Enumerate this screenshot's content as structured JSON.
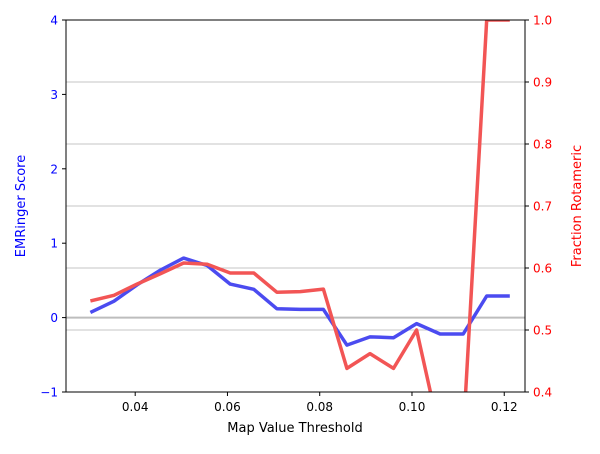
{
  "chart_data": {
    "type": "line",
    "xlabel": "Map Value Threshold",
    "ylabel_left": "EMRinger Score",
    "ylabel_right": "Fraction Rotameric",
    "xlim": [
      0.025,
      0.1245
    ],
    "ylim_left": [
      -1,
      4
    ],
    "ylim_right": [
      0.4,
      1.0
    ],
    "x_ticks": [
      0.04,
      0.06,
      0.08,
      0.1,
      0.12
    ],
    "x_tick_labels": [
      "0.04",
      "0.06",
      "0.08",
      "0.10",
      "0.12"
    ],
    "y_left_ticks": [
      -1,
      0,
      1,
      2,
      3,
      4
    ],
    "y_left_tick_labels": [
      "−1",
      "0",
      "1",
      "2",
      "3",
      "4"
    ],
    "y_right_ticks": [
      0.4,
      0.5,
      0.6,
      0.7,
      0.8,
      0.9,
      1.0
    ],
    "y_right_tick_labels": [
      "0.4",
      "0.5",
      "0.6",
      "0.7",
      "0.8",
      "0.9",
      "1.0"
    ],
    "grid": "right-axis horizontal gridlines",
    "zero_line": 0,
    "colors": {
      "left_axis": "#0000ff",
      "right_axis": "#ff0000",
      "emringer_line": "#4b4bf0",
      "rotameric_line": "#f25555",
      "grid": "#b0b0b0",
      "zero_line": "#bdbdbd"
    },
    "series": [
      {
        "axis": "left",
        "x": [
          0.0303,
          0.0354,
          0.0404,
          0.0455,
          0.0505,
          0.0556,
          0.0606,
          0.0657,
          0.0707,
          0.0758,
          0.0808,
          0.0859,
          0.0909,
          0.096,
          0.101,
          0.1061,
          0.1111,
          0.1162,
          0.1212
        ],
        "values": [
          0.07,
          0.22,
          0.44,
          0.64,
          0.8,
          0.7,
          0.45,
          0.38,
          0.12,
          0.11,
          0.11,
          -0.37,
          -0.26,
          -0.27,
          -0.08,
          -0.22,
          -0.22,
          0.29,
          0.29
        ]
      },
      {
        "axis": "right",
        "x": [
          0.0303,
          0.0354,
          0.0404,
          0.0455,
          0.0505,
          0.0556,
          0.0606,
          0.0657,
          0.0707,
          0.0758,
          0.0808,
          0.0859,
          0.0909,
          0.096,
          0.101,
          0.1061,
          0.1111,
          0.1162,
          0.1212
        ],
        "values": [
          0.547,
          0.556,
          0.574,
          0.591,
          0.608,
          0.606,
          0.592,
          0.592,
          0.561,
          0.562,
          0.566,
          0.438,
          0.462,
          0.438,
          0.5,
          0.33,
          0.33,
          1.0,
          1.0
        ]
      }
    ]
  }
}
